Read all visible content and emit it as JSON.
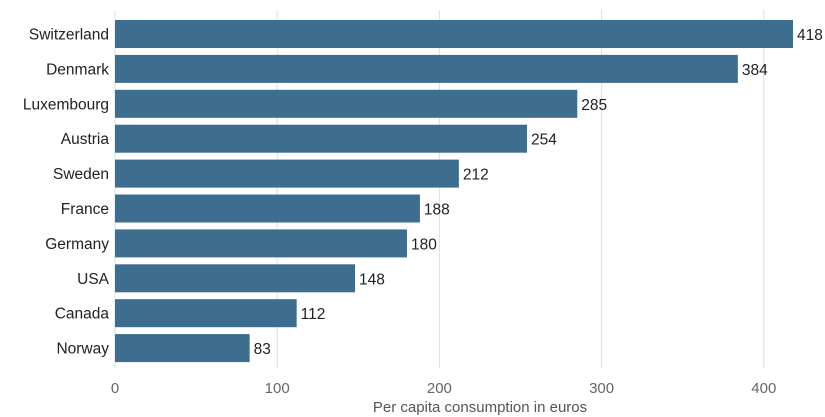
{
  "chart_data": {
    "type": "bar",
    "orientation": "horizontal",
    "categories": [
      "Switzerland",
      "Denmark",
      "Luxembourg",
      "Austria",
      "Sweden",
      "France",
      "Germany",
      "USA",
      "Canada",
      "Norway"
    ],
    "values": [
      418,
      384,
      285,
      254,
      212,
      188,
      180,
      148,
      112,
      83
    ],
    "xlabel": "Per capita consumption in euros",
    "ylabel": "",
    "xlim": [
      0,
      430
    ],
    "xticks": [
      0,
      100,
      200,
      300,
      400
    ],
    "grid": true,
    "data_labels": true,
    "colors": {
      "bar": "#3d6e8f",
      "grid": "#cfe3ec",
      "text": "#222222",
      "axis_text": "#666666"
    }
  }
}
